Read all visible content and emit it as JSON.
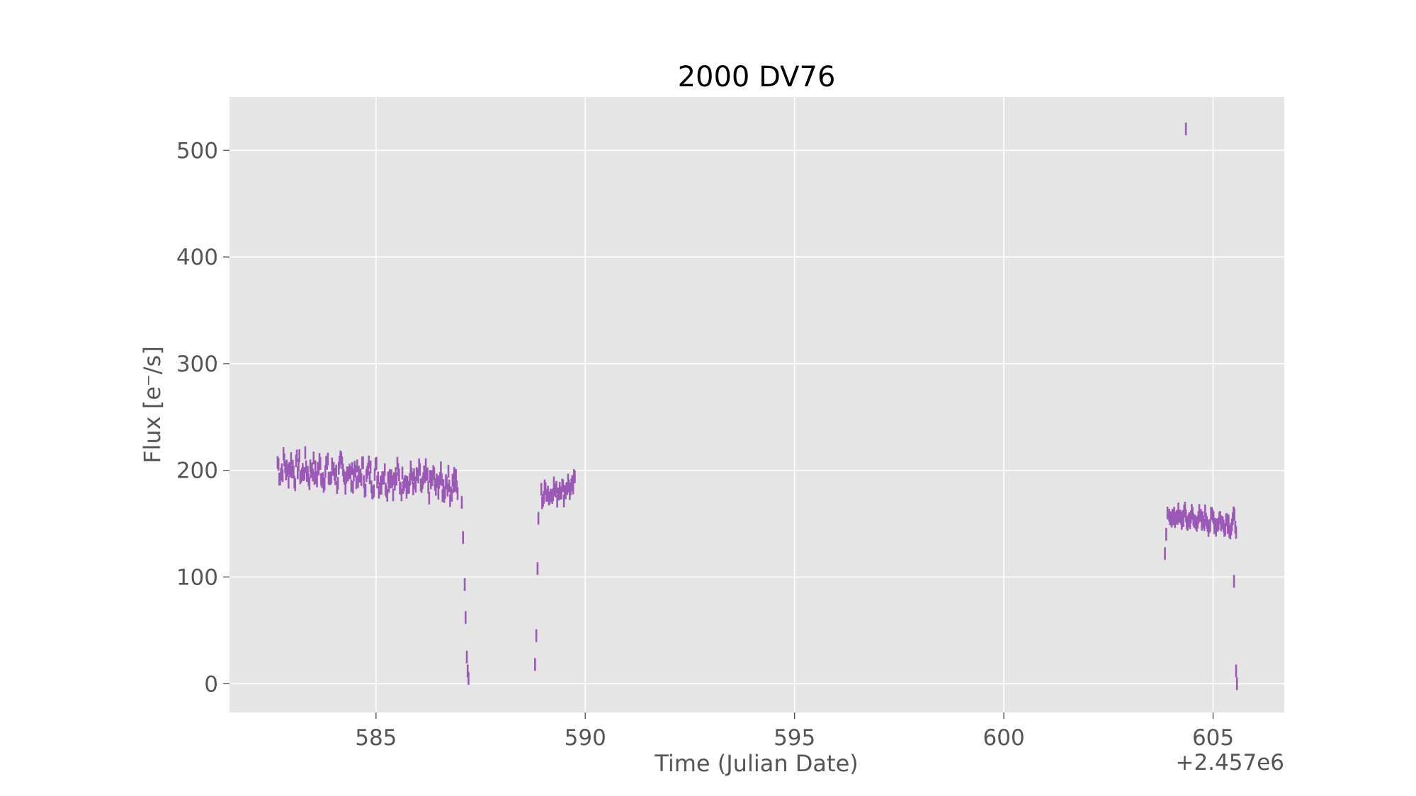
{
  "chart_data": {
    "type": "scatter",
    "title": "2000 DV76",
    "xlabel": "Time (Julian Date)",
    "ylabel": "Flux [e⁻/s]",
    "x_offset_label": "+2.457e6",
    "xlim": [
      581.5,
      606.7
    ],
    "ylim": [
      -27,
      550
    ],
    "xticks": [
      585,
      590,
      595,
      600,
      605
    ],
    "xtick_labels": [
      "585",
      "590",
      "595",
      "600",
      "605"
    ],
    "yticks": [
      0,
      100,
      200,
      300,
      400,
      500
    ],
    "ytick_labels": [
      "0",
      "100",
      "200",
      "300",
      "400",
      "500"
    ],
    "grid": true,
    "marker": "vertical error bar",
    "marker_color": "#9b59b6",
    "plot_background": "#e5e5e5",
    "grid_color": "#ffffff",
    "series": [
      {
        "name": "2000 DV76 flux",
        "segments": [
          {
            "start": 582.65,
            "end": 586.95,
            "base_start": 203,
            "base_end": 186,
            "amp": 11
          },
          {
            "start": 588.95,
            "end": 589.75,
            "base_start": 178,
            "base_end": 185,
            "amp": 8
          },
          {
            "start": 603.95,
            "end": 605.55,
            "base_start": 157,
            "base_end": 150,
            "amp": 7
          }
        ],
        "points": [
          [
            587.05,
            170
          ],
          [
            587.08,
            137
          ],
          [
            587.12,
            93
          ],
          [
            587.14,
            62
          ],
          [
            587.17,
            25
          ],
          [
            587.19,
            12
          ],
          [
            587.21,
            5
          ],
          [
            588.8,
            18
          ],
          [
            588.83,
            45
          ],
          [
            588.86,
            108
          ],
          [
            588.88,
            155
          ],
          [
            603.85,
            122
          ],
          [
            603.88,
            140
          ],
          [
            603.91,
            160
          ],
          [
            604.35,
            520
          ],
          [
            605.5,
            96
          ],
          [
            605.55,
            12
          ],
          [
            605.57,
            0
          ]
        ]
      }
    ]
  }
}
